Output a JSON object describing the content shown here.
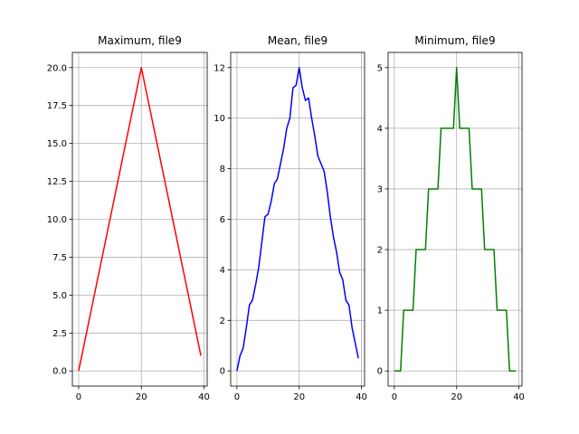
{
  "chart_data": [
    {
      "type": "line",
      "title": "Maximum, file9",
      "color": "#ff0000",
      "xlim": [
        -2,
        41
      ],
      "ylim": [
        -1.0,
        21.0
      ],
      "xticks": [
        0,
        20,
        40
      ],
      "xtick_labels": [
        "0",
        "20",
        "40"
      ],
      "yticks": [
        0,
        2.5,
        5,
        7.5,
        10,
        12.5,
        15,
        17.5,
        20
      ],
      "ytick_labels": [
        "0.0",
        "2.5",
        "5.0",
        "7.5",
        "10.0",
        "12.5",
        "15.0",
        "17.5",
        "20.0"
      ],
      "grid": true,
      "series": [
        {
          "x": [
            0,
            20,
            39
          ],
          "y": [
            0,
            20,
            1
          ]
        }
      ]
    },
    {
      "type": "line",
      "title": "Mean, file9",
      "color": "#0000ff",
      "xlim": [
        -2,
        41
      ],
      "ylim": [
        -0.6,
        12.6
      ],
      "xticks": [
        0,
        20,
        40
      ],
      "xtick_labels": [
        "0",
        "20",
        "40"
      ],
      "yticks": [
        0,
        2,
        4,
        6,
        8,
        10,
        12
      ],
      "ytick_labels": [
        "0",
        "2",
        "4",
        "6",
        "8",
        "10",
        "12"
      ],
      "grid": true,
      "series": [
        {
          "x": [
            0,
            1,
            2,
            3,
            4,
            5,
            6,
            7,
            8,
            9,
            10,
            11,
            12,
            13,
            14,
            15,
            16,
            17,
            18,
            19,
            20,
            21,
            22,
            23,
            24,
            25,
            26,
            27,
            28,
            29,
            30,
            31,
            32,
            33,
            34,
            35,
            36,
            37,
            38,
            39
          ],
          "y": [
            0,
            0.6,
            0.9,
            1.7,
            2.6,
            2.8,
            3.4,
            4.1,
            5.1,
            6.1,
            6.2,
            6.7,
            7.4,
            7.6,
            8.2,
            8.8,
            9.6,
            10.0,
            11.2,
            11.3,
            12.0,
            11.2,
            10.7,
            10.8,
            10.0,
            9.3,
            8.5,
            8.2,
            7.9,
            7.1,
            6.1,
            5.3,
            4.7,
            3.9,
            3.6,
            2.8,
            2.6,
            1.7,
            1.1,
            0.5
          ]
        }
      ]
    },
    {
      "type": "line",
      "title": "Minimum, file9",
      "color": "#008000",
      "xlim": [
        -2,
        41
      ],
      "ylim": [
        -0.25,
        5.25
      ],
      "xticks": [
        0,
        20,
        40
      ],
      "xtick_labels": [
        "0",
        "20",
        "40"
      ],
      "yticks": [
        0,
        1,
        2,
        3,
        4,
        5
      ],
      "ytick_labels": [
        "0",
        "1",
        "2",
        "3",
        "4",
        "5"
      ],
      "grid": true,
      "series": [
        {
          "x": [
            0,
            1,
            2,
            3,
            4,
            5,
            6,
            7,
            8,
            9,
            10,
            11,
            12,
            13,
            14,
            15,
            16,
            17,
            18,
            19,
            20,
            21,
            22,
            23,
            24,
            25,
            26,
            27,
            28,
            29,
            30,
            31,
            32,
            33,
            34,
            35,
            36,
            37,
            38,
            39
          ],
          "y": [
            0,
            0,
            0,
            1,
            1,
            1,
            1,
            2,
            2,
            2,
            2,
            3,
            3,
            3,
            3,
            4,
            4,
            4,
            4,
            4,
            5,
            4,
            4,
            4,
            4,
            3,
            3,
            3,
            3,
            2,
            2,
            2,
            2,
            1,
            1,
            1,
            1,
            0,
            0,
            0
          ]
        }
      ]
    }
  ]
}
